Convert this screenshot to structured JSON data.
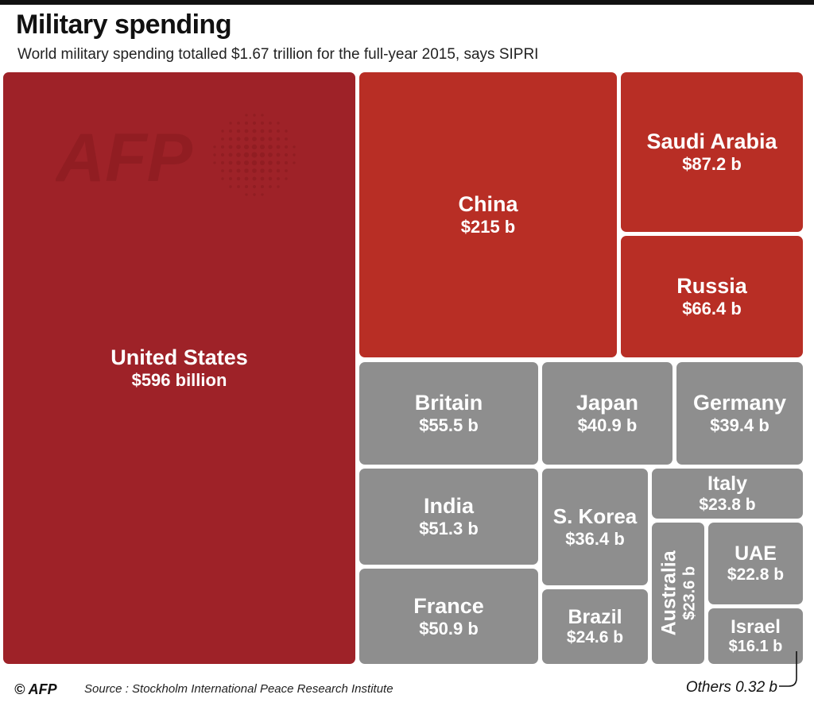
{
  "title": "Military spending",
  "subtitle": "World military spending totalled $1.67 trillion for the full-year 2015, says SIPRI",
  "watermark_text": "AFP",
  "footer": {
    "copyright_logo": "© AFP",
    "source": "Source : Stockholm International Peace Research Institute",
    "others_label": "Others 0.32 b"
  },
  "colors": {
    "us": "#9e2228",
    "top4": "#b82e25",
    "others": "#8e8e8e",
    "text": "#ffffff"
  },
  "chart_data": {
    "type": "treemap",
    "title": "Military spending",
    "subtitle": "World military spending totalled $1.67 trillion for the full-year 2015, says SIPRI",
    "unit": "billion USD",
    "world_total": "$1.67 trillion",
    "items": [
      {
        "name": "United States",
        "label": "$596 billion",
        "value": 596
      },
      {
        "name": "China",
        "label": "$215 b",
        "value": 215
      },
      {
        "name": "Saudi Arabia",
        "label": "$87.2 b",
        "value": 87.2
      },
      {
        "name": "Russia",
        "label": "$66.4 b",
        "value": 66.4
      },
      {
        "name": "Britain",
        "label": "$55.5 b",
        "value": 55.5
      },
      {
        "name": "Japan",
        "label": "$40.9 b",
        "value": 40.9
      },
      {
        "name": "Germany",
        "label": "$39.4 b",
        "value": 39.4
      },
      {
        "name": "India",
        "label": "$51.3 b",
        "value": 51.3
      },
      {
        "name": "S. Korea",
        "label": "$36.4 b",
        "value": 36.4
      },
      {
        "name": "Italy",
        "label": "$23.8 b",
        "value": 23.8
      },
      {
        "name": "Australia",
        "label": "$23.6 b",
        "value": 23.6
      },
      {
        "name": "UAE",
        "label": "$22.8 b",
        "value": 22.8
      },
      {
        "name": "France",
        "label": "$50.9 b",
        "value": 50.9
      },
      {
        "name": "Brazil",
        "label": "$24.6 b",
        "value": 24.6
      },
      {
        "name": "Israel",
        "label": "$16.1 b",
        "value": 16.1
      }
    ],
    "others": {
      "label": "Others 0.32 b",
      "value": 0.32
    }
  }
}
